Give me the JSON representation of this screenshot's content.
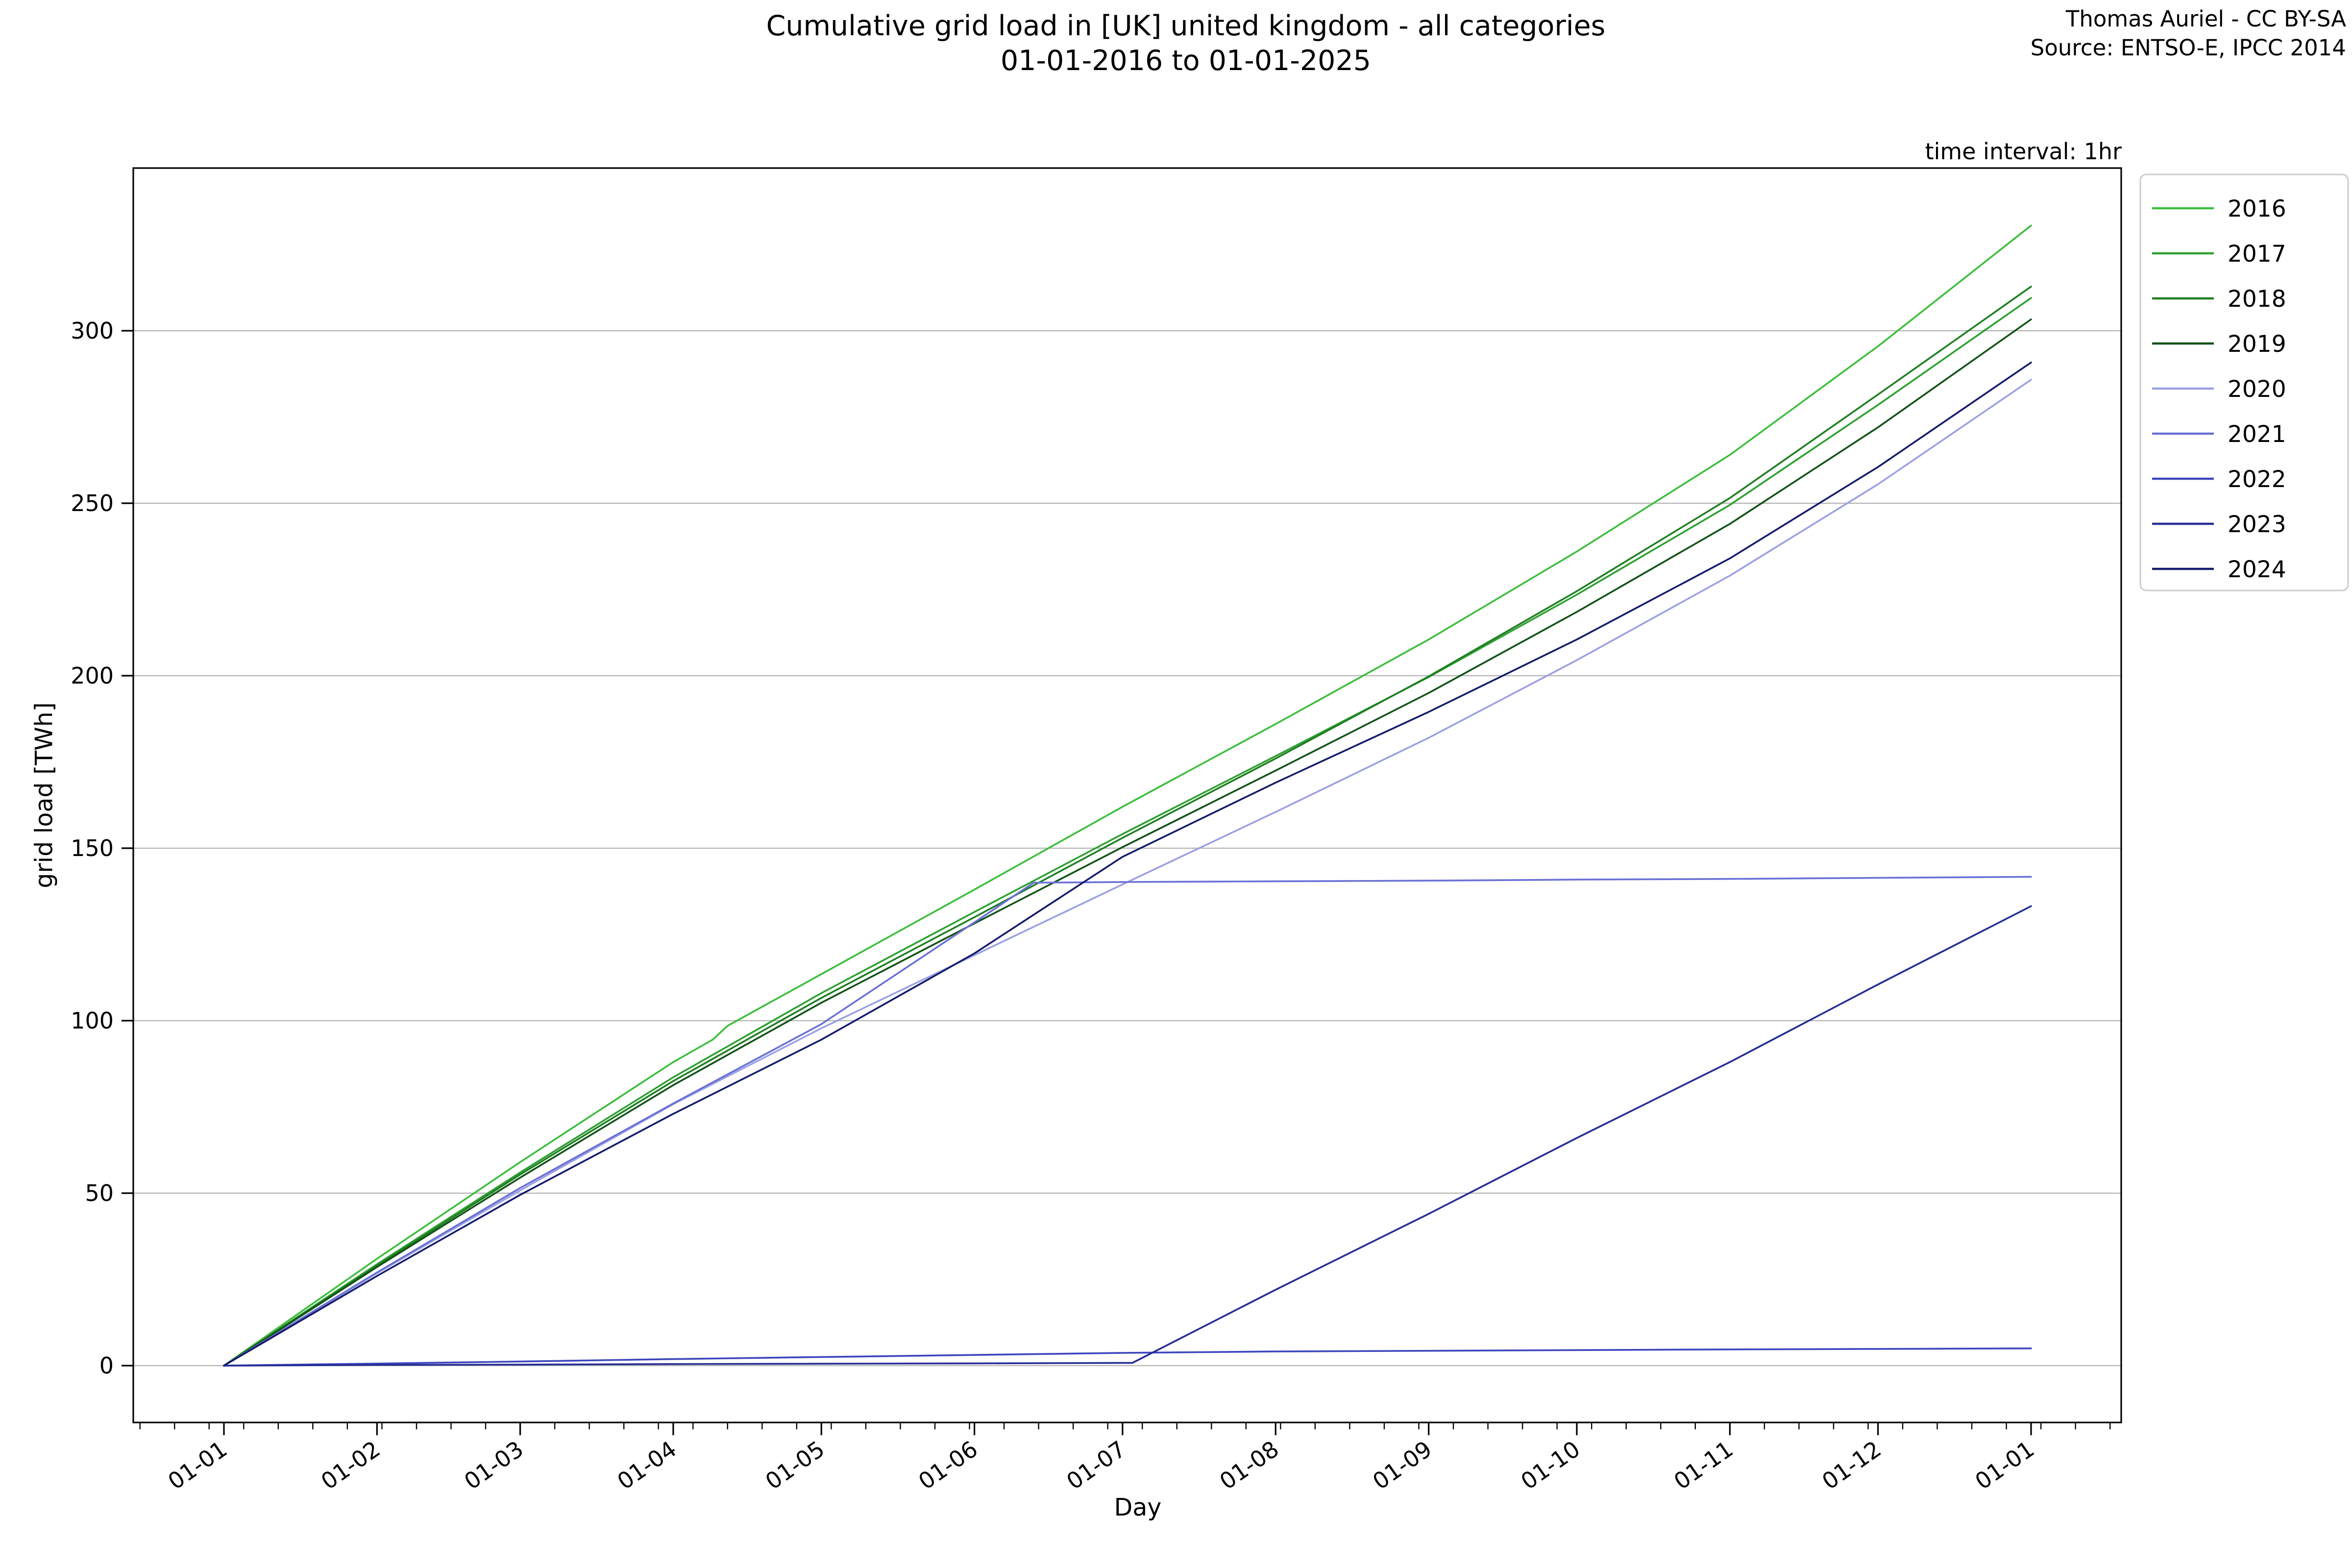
{
  "page": {
    "background": "#ffffff"
  },
  "header": {
    "title_line1": "Cumulative grid load in [UK] united kingdom - all categories",
    "title_line2": "01-01-2016 to 01-01-2025",
    "credit_line1": "Thomas Auriel - CC BY-SA",
    "credit_line2": "Source: ENTSO-E, IPCC 2014",
    "time_interval_note": "time interval: 1hr"
  },
  "chart_data": {
    "type": "line",
    "title": "Cumulative grid load in [UK] united kingdom - all categories 01-01-2016 to 01-01-2025",
    "xlabel": "Day",
    "ylabel": "grid load [TWh]",
    "x_axis": {
      "unit": "day of year (all years overlaid Jan 1 to Jan 1)",
      "tick_days": [
        0,
        31,
        60,
        91,
        121,
        152,
        182,
        213,
        244,
        274,
        305,
        335,
        366
      ],
      "tick_labels": [
        "01-01",
        "01-02",
        "01-03",
        "01-04",
        "01-05",
        "01-06",
        "01-07",
        "01-08",
        "01-09",
        "01-10",
        "01-11",
        "01-12",
        "01-01"
      ],
      "tick_label_rotation_deg": -35,
      "minor_tick_interval_days": 7,
      "data_range_days": [
        0,
        366
      ]
    },
    "y_axis": {
      "ticks": [
        0,
        50,
        100,
        150,
        200,
        250,
        300
      ],
      "lim": [
        -16.5,
        347.2
      ]
    },
    "grid": {
      "horizontal": true,
      "vertical": false,
      "color": "#b3b3b3"
    },
    "axis_color": "#000000",
    "legend": {
      "position": "outside-upper-right",
      "border_color": "#cccccc"
    },
    "series": [
      {
        "name": "2016",
        "color": "#3cbe3c",
        "days": [
          0,
          31,
          60,
          91,
          99,
          102,
          121,
          152,
          182,
          213,
          244,
          274,
          305,
          335,
          366
        ],
        "values": [
          0,
          31.0,
          59.0,
          88.0,
          94.5,
          98.5,
          113.5,
          138.0,
          162.0,
          186.0,
          210.5,
          236.0,
          264.0,
          295.5,
          330.5
        ]
      },
      {
        "name": "2017",
        "color": "#2da030",
        "days": [
          0,
          31,
          60,
          91,
          121,
          152,
          182,
          213,
          244,
          274,
          305,
          335,
          366
        ],
        "values": [
          0,
          29.4,
          56.0,
          83.6,
          108.0,
          131.5,
          154.1,
          176.7,
          199.6,
          223.5,
          249.5,
          278.5,
          309.5
        ]
      },
      {
        "name": "2018",
        "color": "#1e7e22",
        "days": [
          0,
          31,
          60,
          91,
          121,
          152,
          182,
          213,
          244,
          274,
          305,
          335,
          366
        ],
        "values": [
          0,
          29.0,
          55.4,
          82.5,
          106.6,
          130.0,
          153.0,
          176.0,
          199.8,
          224.5,
          251.5,
          281.5,
          312.8
        ]
      },
      {
        "name": "2019",
        "color": "#115216",
        "days": [
          0,
          31,
          60,
          91,
          121,
          152,
          182,
          213,
          244,
          274,
          305,
          335,
          366
        ],
        "values": [
          0,
          28.6,
          54.5,
          81.3,
          105.2,
          128.2,
          150.3,
          172.5,
          195.0,
          218.5,
          244.0,
          272.0,
          303.3
        ]
      },
      {
        "name": "2020",
        "color": "#9ba0e2",
        "days": [
          0,
          31,
          60,
          91,
          121,
          152,
          182,
          213,
          244,
          274,
          305,
          335,
          366
        ],
        "values": [
          0,
          26.8,
          50.8,
          75.8,
          97.8,
          119.0,
          139.5,
          160.5,
          182.0,
          204.5,
          229.0,
          255.5,
          285.8
        ]
      },
      {
        "name": "2021",
        "color": "#6a70d6",
        "days": [
          0,
          31,
          60,
          91,
          121,
          152,
          164,
          182,
          213,
          244,
          274,
          305,
          335,
          366
        ],
        "values": [
          0,
          27.0,
          51.5,
          76.0,
          99.0,
          128.5,
          140.0,
          140.2,
          140.4,
          140.6,
          140.9,
          141.1,
          141.4,
          141.7
        ]
      },
      {
        "name": "2022",
        "color": "#3c46be",
        "days": [
          0,
          31,
          60,
          91,
          121,
          152,
          182,
          213,
          244,
          274,
          305,
          335,
          366
        ],
        "values": [
          0,
          0.6,
          1.2,
          1.9,
          2.5,
          3.1,
          3.7,
          4.1,
          4.3,
          4.5,
          4.7,
          4.85,
          5.0
        ]
      },
      {
        "name": "2023",
        "color": "#262c94",
        "days": [
          0,
          31,
          60,
          91,
          121,
          152,
          184,
          213,
          244,
          274,
          305,
          335,
          366
        ],
        "values": [
          0,
          0.2,
          0.3,
          0.45,
          0.55,
          0.65,
          0.8,
          22.0,
          44.0,
          66.0,
          88.0,
          110.5,
          133.2
        ]
      },
      {
        "name": "2024",
        "color": "#141a6b",
        "days": [
          0,
          31,
          60,
          91,
          121,
          152,
          182,
          213,
          244,
          274,
          305,
          335,
          366
        ],
        "values": [
          0,
          26.0,
          49.5,
          73.0,
          94.5,
          119.5,
          147.5,
          169.0,
          189.5,
          210.5,
          234.0,
          260.5,
          290.8
        ]
      }
    ]
  }
}
